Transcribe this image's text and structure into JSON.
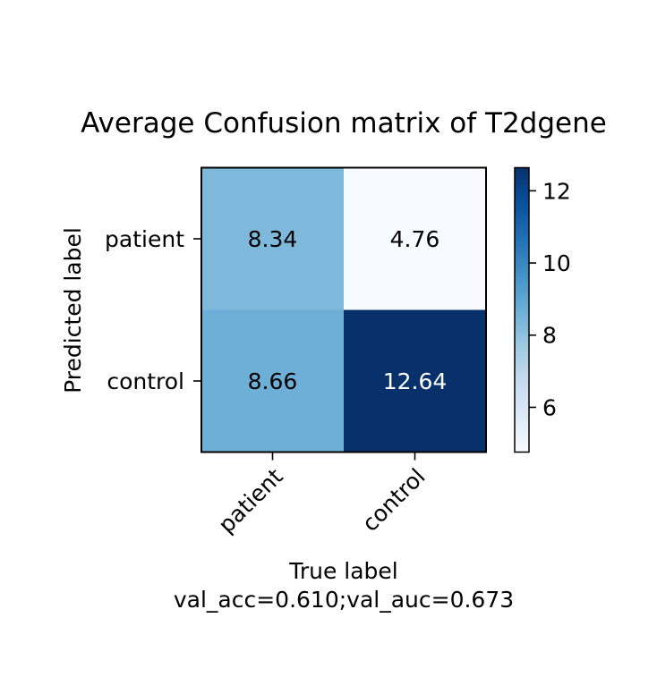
{
  "chart_data": {
    "type": "heatmap",
    "title": "Average Confusion matrix of T2dgene",
    "xlabel": "True label",
    "ylabel": "Predicted label",
    "footer": "val_acc=0.610;val_auc=0.673",
    "x_categories": [
      "patient",
      "control"
    ],
    "y_categories": [
      "patient",
      "control"
    ],
    "values": [
      [
        8.34,
        4.76
      ],
      [
        8.66,
        12.64
      ]
    ],
    "value_labels": [
      [
        "8.34",
        "4.76"
      ],
      [
        "8.66",
        "12.64"
      ]
    ],
    "colormap": "Blues",
    "color_range": [
      4.76,
      12.64
    ],
    "colorbar_ticks": [
      6,
      8,
      10,
      12
    ],
    "colorbar_tick_labels": [
      "6",
      "8",
      "10",
      "12"
    ]
  }
}
